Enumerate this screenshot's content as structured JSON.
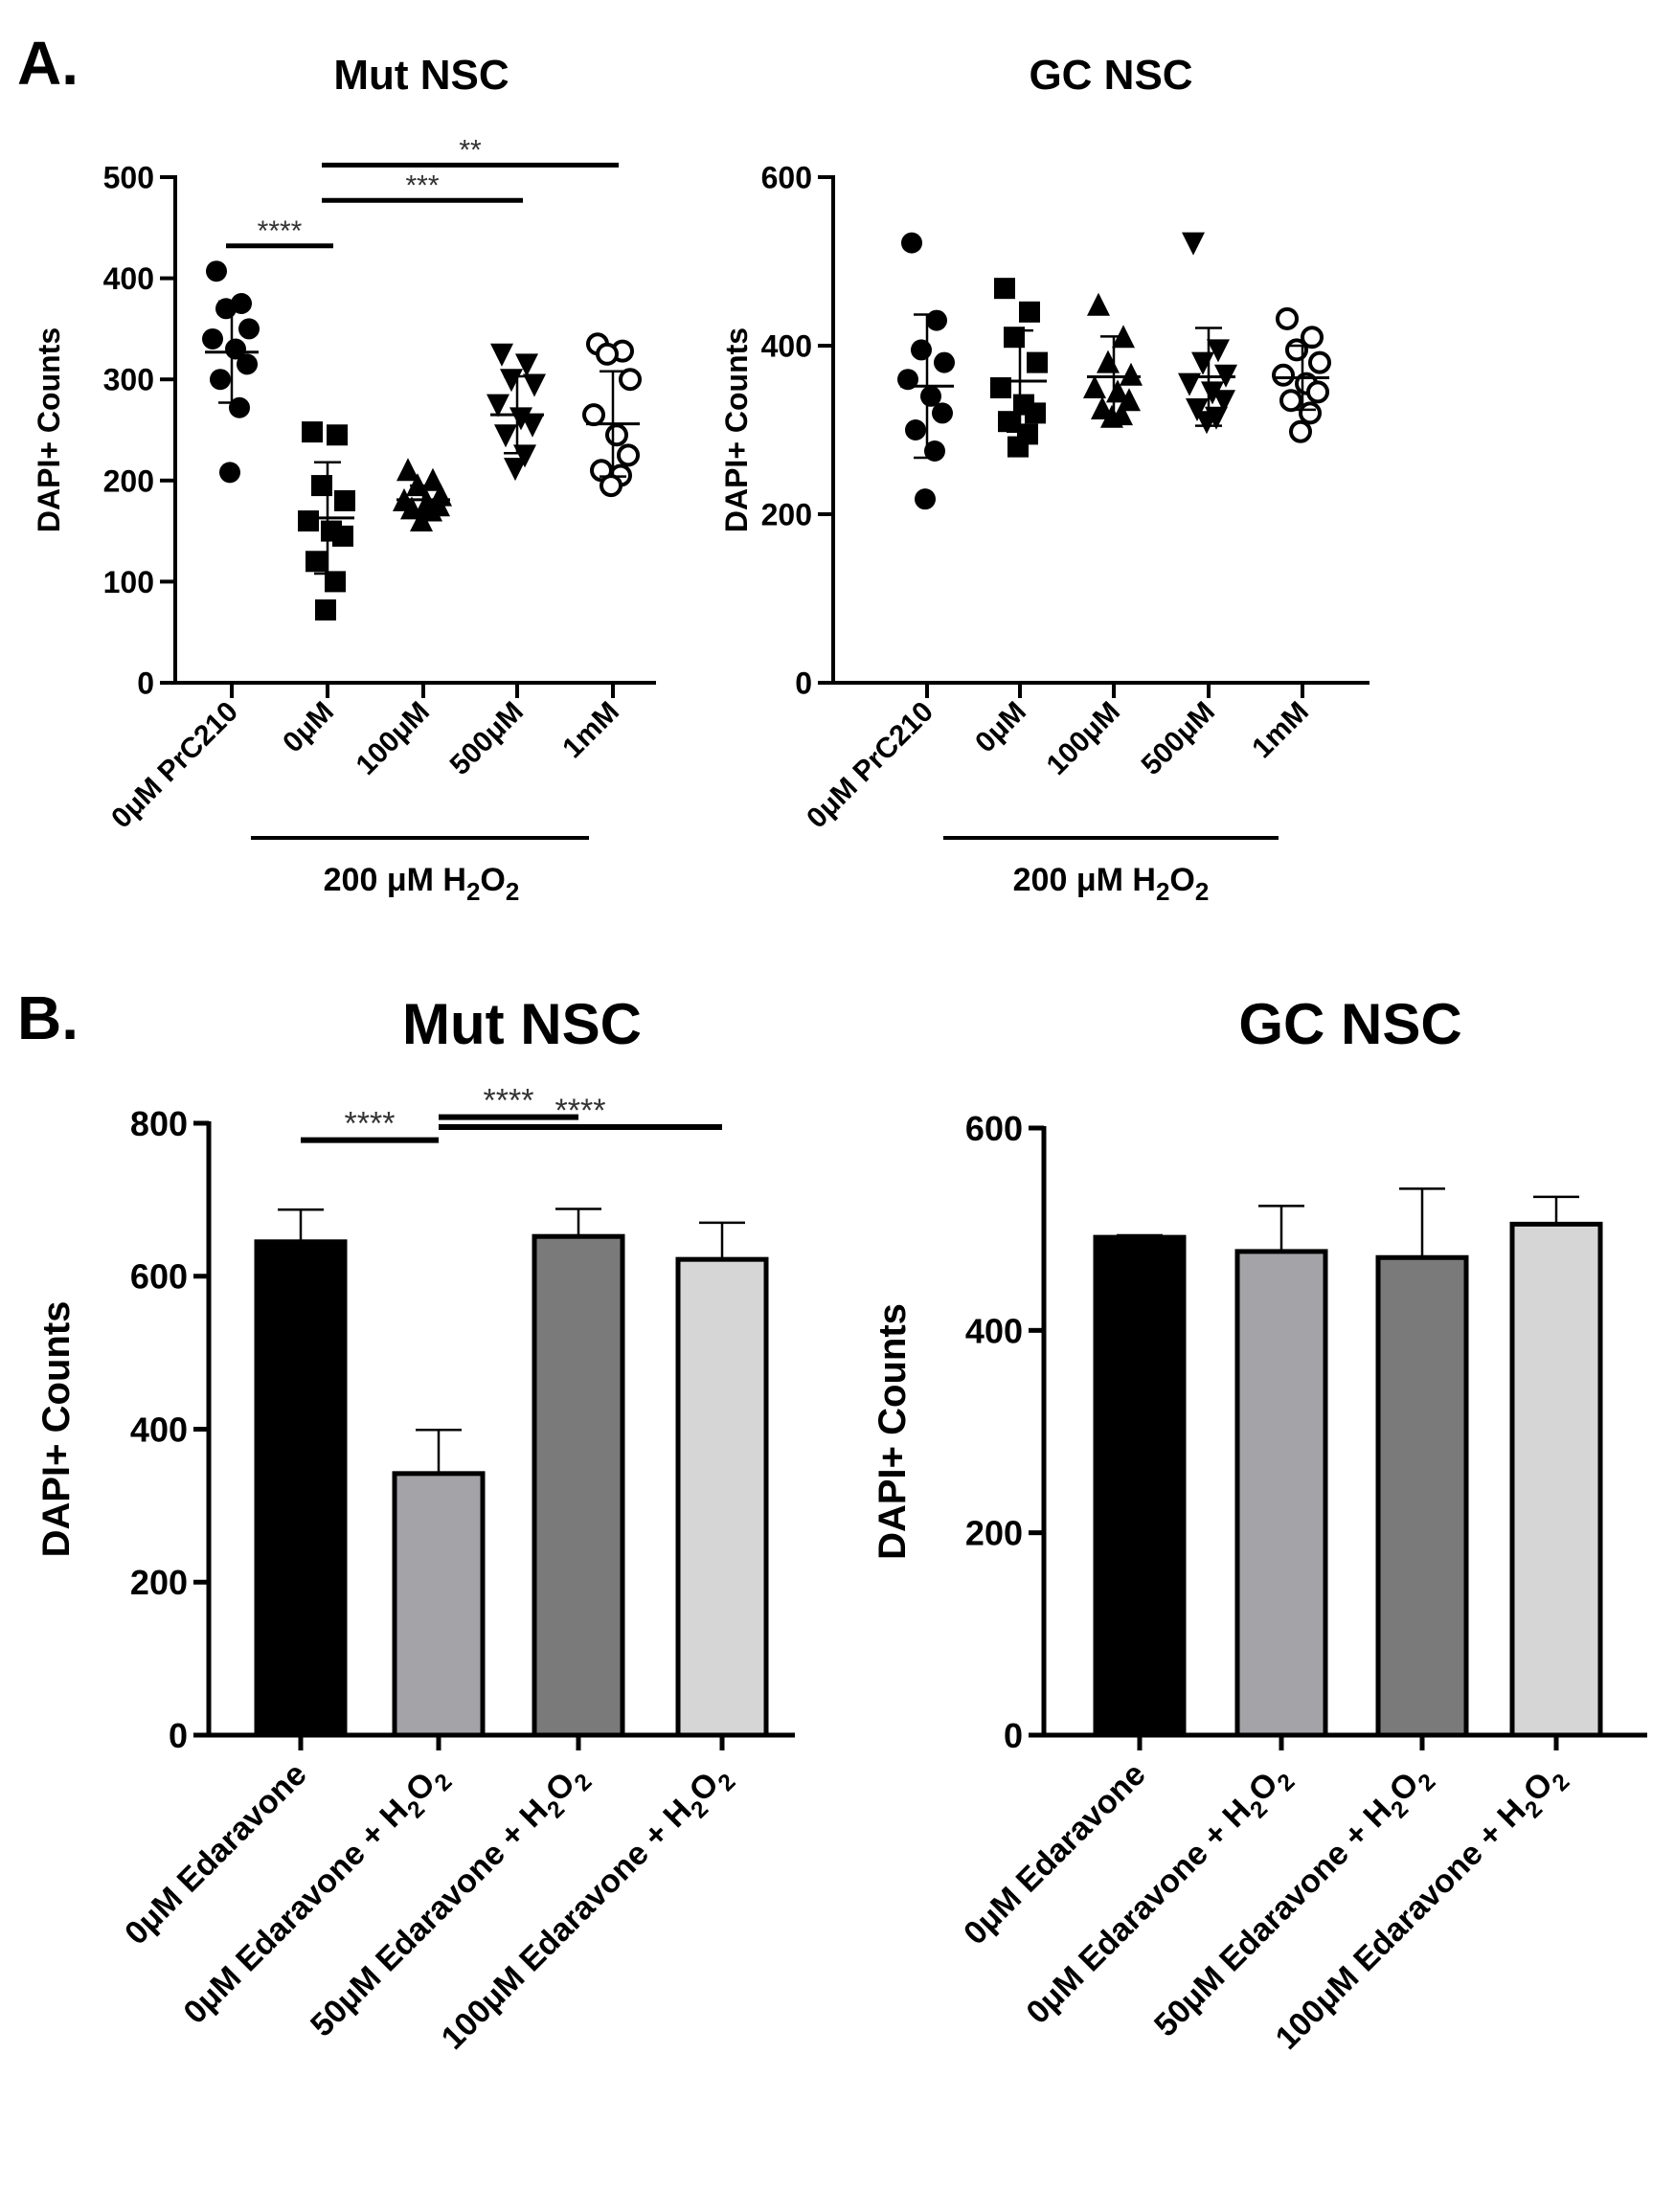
{
  "panels": {
    "a": {
      "label": "A."
    },
    "b": {
      "label": "B."
    }
  },
  "chart_data": [
    {
      "id": "a_mut",
      "type": "scatter",
      "title": "Mut NSC",
      "ylabel": "DAPI+ Counts",
      "ylim": [
        0,
        500
      ],
      "yticks": [
        0,
        100,
        200,
        300,
        400,
        500
      ],
      "categories": [
        "0μM PrC210",
        "0μM",
        "100μM",
        "500μM",
        "1mM"
      ],
      "markers": [
        "circle",
        "square",
        "triangle",
        "triangle-down",
        "circle-open"
      ],
      "bracket_label": "200 μM H2O2",
      "bracket_label_parts": {
        "a": "200 μM H",
        "sub1": "2",
        "b": "O",
        "sub2": "2"
      },
      "bracket_span": [
        1,
        4
      ],
      "series": [
        {
          "values": [
            407,
            375,
            370,
            350,
            340,
            330,
            315,
            300,
            272,
            208
          ],
          "mean": 327,
          "sd": 50
        },
        {
          "values": [
            248,
            245,
            195,
            180,
            160,
            150,
            145,
            120,
            100,
            72
          ],
          "mean": 163,
          "sd": 55
        },
        {
          "values": [
            210,
            200,
            195,
            185,
            180,
            178,
            175,
            172,
            170,
            160
          ],
          "mean": 181,
          "sd": 14
        },
        {
          "values": [
            325,
            315,
            300,
            295,
            275,
            262,
            255,
            245,
            225,
            212
          ],
          "mean": 265,
          "sd": 38
        },
        {
          "values": [
            335,
            328,
            325,
            300,
            265,
            245,
            225,
            210,
            205,
            195
          ],
          "mean": 256,
          "sd": 52
        }
      ],
      "significance": [
        {
          "from": 0,
          "to": 1,
          "label": "****",
          "y": 432
        },
        {
          "from": 1,
          "to": 3,
          "label": "***",
          "y": 477
        },
        {
          "from": 1,
          "to": 4,
          "label": "**",
          "y": 512
        }
      ]
    },
    {
      "id": "a_gc",
      "type": "scatter",
      "title": "GC NSC",
      "ylabel": "DAPI+ Counts",
      "ylim": [
        0,
        600
      ],
      "yticks": [
        0,
        200,
        400,
        600
      ],
      "categories": [
        "0μM PrC210",
        "0μM",
        "100μM",
        "500μM",
        "1mM"
      ],
      "markers": [
        "circle",
        "square",
        "triangle",
        "triangle-down",
        "circle-open"
      ],
      "bracket_label": "200 μM H2O2",
      "bracket_label_parts": {
        "a": "200 μM H",
        "sub1": "2",
        "b": "O",
        "sub2": "2"
      },
      "bracket_span": [
        1,
        4
      ],
      "series": [
        {
          "values": [
            522,
            430,
            395,
            380,
            360,
            340,
            320,
            300,
            275,
            218
          ],
          "mean": 352,
          "sd": 85
        },
        {
          "values": [
            468,
            440,
            410,
            380,
            350,
            330,
            320,
            310,
            295,
            280
          ],
          "mean": 358,
          "sd": 60
        },
        {
          "values": [
            448,
            410,
            380,
            365,
            350,
            345,
            335,
            325,
            318,
            315
          ],
          "mean": 363,
          "sd": 48
        },
        {
          "values": [
            522,
            395,
            380,
            365,
            355,
            345,
            335,
            325,
            315,
            310
          ],
          "mean": 363,
          "sd": 58
        },
        {
          "values": [
            432,
            410,
            395,
            380,
            365,
            355,
            345,
            335,
            320,
            298
          ],
          "mean": 362,
          "sd": 38
        }
      ],
      "significance": []
    },
    {
      "id": "b_mut",
      "type": "bar",
      "title": "Mut NSC",
      "ylabel": "DAPI+ Counts",
      "ylim": [
        0,
        800
      ],
      "yticks": [
        0,
        200,
        400,
        600,
        800
      ],
      "categories": [
        "0μM Edaravone",
        "0μM Edaravone + H2O2",
        "50μM Edaravone + H2O2",
        "100μM Edaravone + H2O2"
      ],
      "colors": [
        "#000000",
        "#a3a3a8",
        "#7a7a7a",
        "#d6d6d6"
      ],
      "values": [
        645,
        342,
        652,
        622
      ],
      "errors": [
        42,
        57,
        36,
        48
      ],
      "significance": [
        {
          "from": 0,
          "to": 1,
          "label": "****",
          "y": 778
        },
        {
          "from": 1,
          "to": 2,
          "label": "****",
          "y": 808
        },
        {
          "from": 1,
          "to": 3,
          "label": "****",
          "y": 795
        }
      ]
    },
    {
      "id": "b_gc",
      "type": "bar",
      "title": "GC NSC",
      "ylabel": "DAPI+ Counts",
      "ylim": [
        0,
        600
      ],
      "yticks": [
        0,
        200,
        400,
        600
      ],
      "categories": [
        "0μM Edaravone",
        "0μM Edaravone + H2O2",
        "50μM Edaravone + H2O2",
        "100μM Edaravone + H2O2"
      ],
      "colors": [
        "#000000",
        "#a3a3a8",
        "#7a7a7a",
        "#d6d6d6"
      ],
      "values": [
        492,
        478,
        472,
        505
      ],
      "errors": [
        2,
        45,
        68,
        27
      ],
      "significance": []
    }
  ]
}
